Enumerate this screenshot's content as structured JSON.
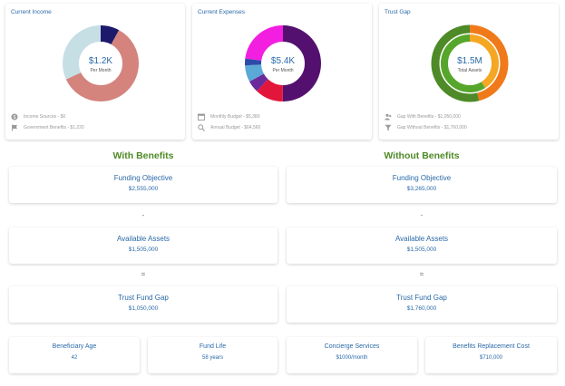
{
  "income": {
    "title": "Current Income",
    "center_value": "$1.2K",
    "center_sub": "Per Month",
    "legend": [
      {
        "icon": "dollar-coin-icon",
        "text": "Income Sources - $0"
      },
      {
        "icon": "flag-icon",
        "text": "Government Benefits - $1,220"
      }
    ],
    "segments": [
      {
        "value": 8,
        "color": "#1e1a6b"
      },
      {
        "value": 60,
        "color": "#d4837d"
      },
      {
        "value": 32,
        "color": "#c6dfe5"
      }
    ]
  },
  "expenses": {
    "title": "Current Expenses",
    "center_value": "$5.4K",
    "center_sub": "Per Month",
    "legend": [
      {
        "icon": "calendar-icon",
        "text": "Monthly Budget - $5,380"
      },
      {
        "icon": "magnifier-icon",
        "text": "Annual Budget - $64,560"
      }
    ],
    "segments": [
      {
        "value": 50,
        "color": "#54106e"
      },
      {
        "value": 12,
        "color": "#e2163b"
      },
      {
        "value": 5,
        "color": "#6a2a9c"
      },
      {
        "value": 7,
        "color": "#5aa9d6"
      },
      {
        "value": 3,
        "color": "#2d4aa8"
      },
      {
        "value": 23,
        "color": "#f21ee0"
      }
    ]
  },
  "trust_gap": {
    "title": "Trust Gap",
    "center_value": "$1.5M",
    "center_sub": "Total Assets",
    "legend": [
      {
        "icon": "people-icon",
        "text": "Gap With Benefits - $1,050,000"
      },
      {
        "icon": "filter-icon",
        "text": "Gap Without Benefits - $1,760,000"
      }
    ],
    "outer_segments": [
      {
        "value": 46,
        "color": "#f07a1a"
      },
      {
        "value": 54,
        "color": "#4e8a27"
      }
    ],
    "inner_segments": [
      {
        "value": 41,
        "color": "#f5a623"
      },
      {
        "value": 59,
        "color": "#56a62b"
      }
    ]
  },
  "with_benefits": {
    "heading": "With Benefits",
    "funding_objective_label": "Funding Objective",
    "funding_objective_value": "$2,555,000",
    "minus": "-",
    "available_assets_label": "Available Assets",
    "available_assets_value": "$1,505,000",
    "equals": "=",
    "trust_fund_gap_label": "Trust Fund Gap",
    "trust_fund_gap_value": "$1,050,000"
  },
  "without_benefits": {
    "heading": "Without Benefits",
    "funding_objective_label": "Funding Objective",
    "funding_objective_value": "$3,265,000",
    "minus": "-",
    "available_assets_label": "Available Assets",
    "available_assets_value": "$1,505,000",
    "equals": "=",
    "trust_fund_gap_label": "Trust Fund Gap",
    "trust_fund_gap_value": "$1,760,000"
  },
  "bottom": [
    {
      "label": "Beneficiary Age",
      "value": "42"
    },
    {
      "label": "Fund Life",
      "value": "58 years"
    },
    {
      "label": "Concierge Services",
      "value": "$1000/month"
    },
    {
      "label": "Benefits Replacement Cost",
      "value": "$710,000"
    }
  ]
}
